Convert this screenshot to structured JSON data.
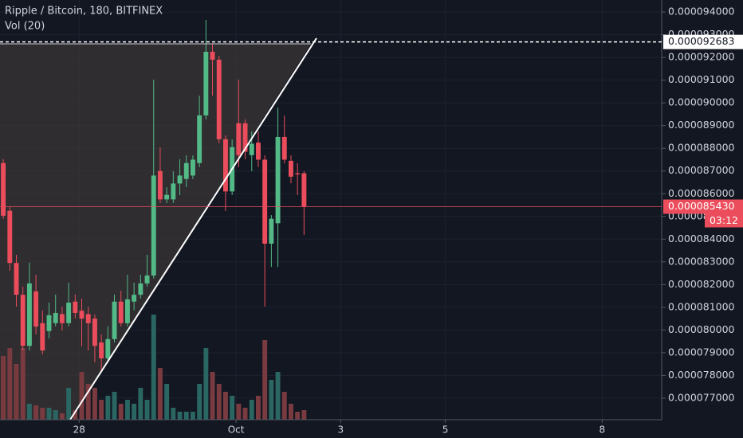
{
  "chart_data": {
    "type": "candlestick",
    "title": "Ripple / Bitcoin, 180, BITFINEX",
    "volume_title": "Vol (20)",
    "x": [
      0,
      1,
      2,
      3,
      4,
      5,
      6,
      7,
      8,
      9,
      10,
      11,
      12,
      13,
      14,
      15,
      16,
      17,
      18,
      19,
      20,
      21,
      22,
      23,
      24,
      25,
      26,
      27,
      28,
      29,
      30,
      31,
      32,
      33,
      34,
      35,
      36,
      37,
      38,
      39,
      40,
      41,
      42,
      43,
      44,
      45,
      46
    ],
    "open": [
      8.735e-05,
      8.525e-05,
      8.295e-05,
      8.155e-05,
      7.93e-05,
      8.17e-05,
      8.03e-05,
      7.995e-05,
      8.03e-05,
      8.07e-05,
      8.03e-05,
      8.125e-05,
      8.085e-05,
      8.07e-05,
      8.05e-05,
      7.945e-05,
      7.875e-05,
      7.96e-05,
      8.125e-05,
      8.03e-05,
      8.125e-05,
      8.155e-05,
      8.205e-05,
      8.24e-05,
      8.7e-05,
      8.575e-05,
      8.575e-05,
      8.645e-05,
      8.665e-05,
      8.68e-05,
      8.735e-05,
      8.945e-05,
      9.225e-05,
      9.19e-05,
      8.84e-05,
      8.61e-05,
      8.91e-05,
      8.91e-05,
      8.77e-05,
      8.825e-05,
      8.75e-05,
      8.38e-05,
      8.47e-05,
      8.85e-05,
      8.745e-05,
      8.69e-05,
      8.69e-05
    ],
    "high": [
      8.752e-05,
      8.541e-05,
      8.331e-05,
      8.191e-05,
      8.296e-05,
      8.243e-05,
      8.086e-05,
      8.121e-05,
      8.156e-05,
      8.103e-05,
      8.208e-05,
      8.156e-05,
      8.138e-05,
      8.103e-05,
      8.068e-05,
      7.981e-05,
      8.016e-05,
      8.156e-05,
      8.173e-05,
      8.243e-05,
      8.208e-05,
      8.243e-05,
      8.331e-05,
      9.102e-05,
      8.804e-05,
      8.629e-05,
      8.699e-05,
      8.752e-05,
      8.769e-05,
      8.769e-05,
      9.032e-05,
      9.365e-05,
      9.26e-05,
      9.207e-05,
      8.857e-05,
      8.839e-05,
      9.102e-05,
      8.927e-05,
      8.874e-05,
      8.874e-05,
      8.769e-05,
      8.506e-05,
      8.979e-05,
      8.944e-05,
      8.769e-05,
      8.734e-05,
      8.699e-05
    ],
    "low": [
      8.489e-05,
      8.261e-05,
      8.103e-05,
      7.91e-05,
      7.91e-05,
      7.981e-05,
      7.893e-05,
      7.963e-05,
      8.016e-05,
      7.998e-05,
      8.016e-05,
      8.051e-05,
      7.928e-05,
      7.91e-05,
      7.858e-05,
      7.823e-05,
      7.858e-05,
      7.945e-05,
      8.016e-05,
      8.016e-05,
      8.086e-05,
      8.138e-05,
      8.191e-05,
      8.226e-05,
      8.559e-05,
      8.559e-05,
      8.559e-05,
      8.594e-05,
      8.629e-05,
      8.664e-05,
      8.717e-05,
      8.927e-05,
      9.032e-05,
      8.822e-05,
      8.524e-05,
      8.594e-05,
      8.717e-05,
      8.752e-05,
      8.699e-05,
      8.717e-05,
      8.103e-05,
      8.278e-05,
      8.278e-05,
      8.734e-05,
      8.646e-05,
      8.594e-05,
      8.419e-05
    ],
    "close": [
      8.503e-05,
      8.295e-05,
      8.155e-05,
      7.93e-05,
      8.205e-05,
      8.015e-05,
      7.91e-05,
      8.065e-05,
      8.075e-05,
      8.03e-05,
      8.12e-05,
      8.075e-05,
      8.05e-05,
      8.03e-05,
      7.93e-05,
      7.875e-05,
      7.96e-05,
      8.125e-05,
      8.03e-05,
      8.135e-05,
      8.155e-05,
      8.205e-05,
      8.24e-05,
      8.68e-05,
      8.575e-05,
      8.595e-05,
      8.645e-05,
      8.68e-05,
      8.735e-05,
      8.75e-05,
      8.945e-05,
      9.225e-05,
      9.19e-05,
      8.84e-05,
      8.61e-05,
      8.805e-05,
      8.77e-05,
      8.785e-05,
      8.82e-05,
      8.75e-05,
      8.38e-05,
      8.49e-05,
      8.85e-05,
      8.75e-05,
      8.675e-05,
      8.685e-05,
      8.543e-05
    ],
    "volumes": [
      80,
      90,
      70,
      90,
      20,
      18,
      15,
      15,
      12,
      8,
      40,
      12,
      60,
      45,
      40,
      25,
      30,
      35,
      20,
      25,
      20,
      40,
      25,
      132,
      65,
      45,
      15,
      10,
      10,
      10,
      45,
      90,
      60,
      45,
      35,
      30,
      20,
      15,
      25,
      30,
      100,
      50,
      60,
      35,
      20,
      10,
      12
    ],
    "volume_lim": [
      0,
      527
    ],
    "up_color": "#53b987",
    "down_color": "#eb4d5c",
    "volume_up_color": "#2a6662",
    "volume_down_color": "#7a3b40",
    "xlim": [
      -0.5,
      100.7
    ],
    "xticks": [
      {
        "value": 11.6,
        "label": "28"
      },
      {
        "value": 35.6,
        "label": "Oct"
      },
      {
        "value": 51.6,
        "label": "3"
      },
      {
        "value": 67.6,
        "label": "5"
      },
      {
        "value": 91.6,
        "label": "8"
      }
    ],
    "ylim": [
      7.605e-05,
      9.453e-05
    ],
    "yticks": [
      {
        "value": 7.7e-05,
        "label": "0.000077000"
      },
      {
        "value": 7.8e-05,
        "label": "0.000078000"
      },
      {
        "value": 7.9e-05,
        "label": "0.000079000"
      },
      {
        "value": 8e-05,
        "label": "0.000080000"
      },
      {
        "value": 8.1e-05,
        "label": "0.000081000"
      },
      {
        "value": 8.2e-05,
        "label": "0.000082000"
      },
      {
        "value": 8.3e-05,
        "label": "0.000083000"
      },
      {
        "value": 8.4e-05,
        "label": "0.000084000"
      },
      {
        "value": 8.5e-05,
        "label": "0.000085000"
      },
      {
        "value": 8.6e-05,
        "label": "0.000086000"
      },
      {
        "value": 8.7e-05,
        "label": "0.000087000"
      },
      {
        "value": 8.8e-05,
        "label": "0.000088000"
      },
      {
        "value": 8.9e-05,
        "label": "0.000089000"
      },
      {
        "value": 9e-05,
        "label": "0.000090000"
      },
      {
        "value": 9.1e-05,
        "label": "0.000091000"
      },
      {
        "value": 9.2e-05,
        "label": "0.000092000"
      },
      {
        "value": 9.3e-05,
        "label": "0.000093000"
      },
      {
        "value": 9.4e-05,
        "label": "0.000094000"
      }
    ],
    "grid": true,
    "last_price": {
      "value": 8.543e-05,
      "label": "0.000085430"
    },
    "countdown": "03:12",
    "marker_price": {
      "value": 9.2683e-05,
      "label": "0.000092683"
    }
  }
}
